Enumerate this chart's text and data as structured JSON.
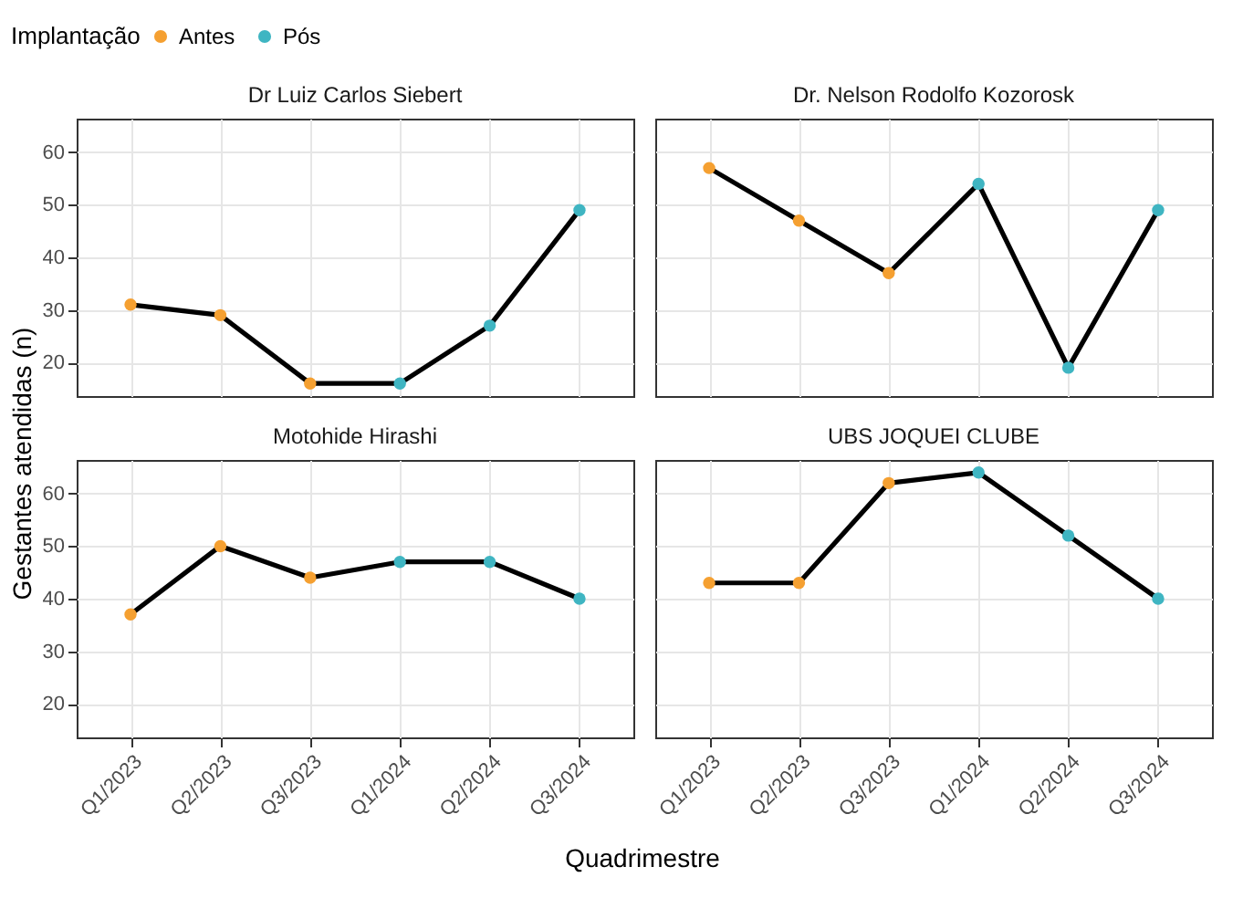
{
  "chart_data": [
    {
      "type": "line",
      "title": "Dr Luiz Carlos Siebert",
      "ylabel": "Gestantes atendidas (n)",
      "legend_title": "Implantação",
      "legend": "top",
      "grid": true,
      "tick_labels": "y",
      "categories": [
        "Q1/2023",
        "Q2/2023",
        "Q3/2023",
        "Q1/2024",
        "Q2/2024",
        "Q3/2024"
      ],
      "ylim": [
        13.6,
        66.4
      ],
      "yticks": [
        20,
        30,
        40,
        50,
        60
      ],
      "series": [
        {
          "type": "line",
          "color": "#000000",
          "values": [
            31,
            29,
            16,
            16,
            27,
            49
          ]
        },
        {
          "type": "scatter",
          "name": "Antes",
          "color": "#f5a031",
          "values": [
            31,
            29,
            16,
            null,
            null,
            null
          ]
        },
        {
          "type": "scatter",
          "name": "Pós",
          "color": "#3fb5c2",
          "values": [
            null,
            null,
            null,
            16,
            27,
            49
          ]
        }
      ]
    },
    {
      "type": "line",
      "title": "Dr. Nelson Rodolfo Kozorosk",
      "grid": true,
      "tick_labels": false,
      "categories": [
        "Q1/2023",
        "Q2/2023",
        "Q3/2023",
        "Q1/2024",
        "Q2/2024",
        "Q3/2024"
      ],
      "ylim": [
        13.6,
        66.4
      ],
      "yticks": [
        20,
        30,
        40,
        50,
        60
      ],
      "series": [
        {
          "type": "line",
          "color": "#000000",
          "values": [
            57,
            47,
            37,
            54,
            19,
            49
          ]
        },
        {
          "type": "scatter",
          "name": "Antes",
          "color": "#f5a031",
          "values": [
            57,
            47,
            37,
            null,
            null,
            null
          ]
        },
        {
          "type": "scatter",
          "name": "Pós",
          "color": "#3fb5c2",
          "values": [
            null,
            null,
            null,
            54,
            19,
            49
          ]
        }
      ]
    },
    {
      "type": "line",
      "title": "Motohide Hirashi",
      "xlabel": "Quadrimestre",
      "grid": true,
      "categories": [
        "Q1/2023",
        "Q2/2023",
        "Q3/2023",
        "Q1/2024",
        "Q2/2024",
        "Q3/2024"
      ],
      "ylim": [
        13.6,
        66.4
      ],
      "yticks": [
        20,
        30,
        40,
        50,
        60
      ],
      "series": [
        {
          "type": "line",
          "color": "#000000",
          "values": [
            37,
            50,
            44,
            47,
            47,
            40
          ]
        },
        {
          "type": "scatter",
          "name": "Antes",
          "color": "#f5a031",
          "values": [
            37,
            50,
            44,
            null,
            null,
            null
          ]
        },
        {
          "type": "scatter",
          "name": "Pós",
          "color": "#3fb5c2",
          "values": [
            null,
            null,
            null,
            47,
            47,
            40
          ]
        }
      ]
    },
    {
      "type": "line",
      "title": "UBS JOQUEI CLUBE",
      "grid": true,
      "tick_labels": "x",
      "categories": [
        "Q1/2023",
        "Q2/2023",
        "Q3/2023",
        "Q1/2024",
        "Q2/2024",
        "Q3/2024"
      ],
      "ylim": [
        13.6,
        66.4
      ],
      "yticks": [
        20,
        30,
        40,
        50,
        60
      ],
      "series": [
        {
          "type": "line",
          "color": "#000000",
          "values": [
            43,
            43,
            62,
            64,
            52,
            40
          ]
        },
        {
          "type": "scatter",
          "name": "Antes",
          "color": "#f5a031",
          "values": [
            43,
            43,
            62,
            null,
            null,
            null
          ]
        },
        {
          "type": "scatter",
          "name": "Pós",
          "color": "#3fb5c2",
          "values": [
            null,
            null,
            null,
            64,
            52,
            40
          ]
        }
      ]
    }
  ]
}
